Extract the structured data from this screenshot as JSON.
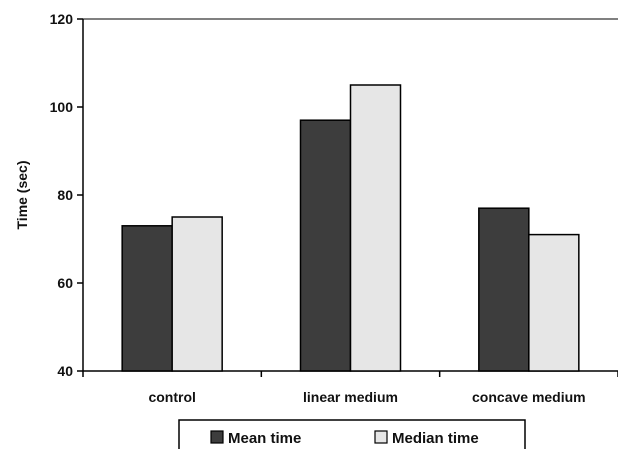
{
  "chart_data": {
    "type": "bar",
    "title": "",
    "xlabel": "",
    "ylabel": "Time (sec)",
    "ylim": [
      40,
      120
    ],
    "yticks": [
      "40",
      "60",
      "80",
      "100",
      "120"
    ],
    "categories": [
      "control",
      "linear medium",
      "concave medium"
    ],
    "series": [
      {
        "name": "Mean time",
        "values": [
          73,
          97,
          77
        ],
        "color": "#3d3d3d"
      },
      {
        "name": "Median time",
        "values": [
          75,
          105,
          71
        ],
        "color": "#e6e6e6"
      }
    ],
    "grid": false,
    "legend_position": "bottom"
  }
}
